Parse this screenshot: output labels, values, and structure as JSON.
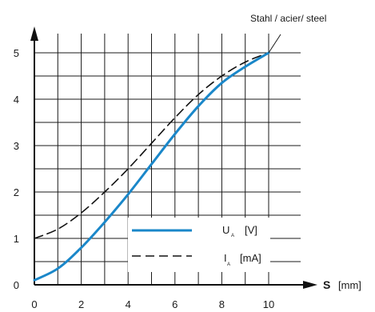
{
  "chart_data": {
    "type": "line",
    "xlabel": "S",
    "xunit": "[mm]",
    "xlim": [
      0,
      10
    ],
    "ylim": [
      0,
      5
    ],
    "xticks": [
      "0",
      "2",
      "4",
      "6",
      "8",
      "10"
    ],
    "yticks": [
      "0",
      "1",
      "2",
      "3",
      "4",
      "5"
    ],
    "grid": true,
    "annotation": "Stahl / acier/ steel",
    "series": [
      {
        "name": "U",
        "subscript": "A",
        "unit": "[V]",
        "style": "solid",
        "color": "#1a87c9",
        "x": [
          0,
          1,
          2,
          3,
          4,
          5,
          6,
          7,
          8,
          9,
          10
        ],
        "values": [
          0.1,
          0.35,
          0.8,
          1.35,
          1.95,
          2.6,
          3.25,
          3.85,
          4.35,
          4.7,
          5.0
        ]
      },
      {
        "name": "I",
        "subscript": "A",
        "unit": "[mA]",
        "style": "dashed",
        "color": "#111111",
        "x": [
          0,
          1,
          2,
          3,
          4,
          5,
          6,
          7,
          8,
          9,
          10
        ],
        "values": [
          1.0,
          1.2,
          1.55,
          2.0,
          2.5,
          3.05,
          3.6,
          4.1,
          4.5,
          4.8,
          5.0
        ]
      }
    ]
  }
}
